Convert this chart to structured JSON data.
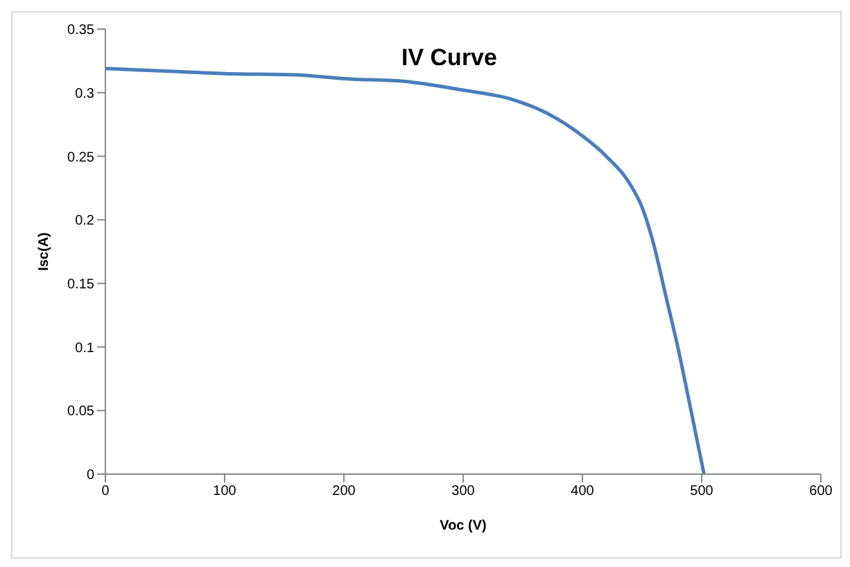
{
  "chart_data": {
    "type": "line",
    "title": "IV Curve",
    "xlabel": "Voc (V)",
    "ylabel": "Isc(A)",
    "series": [
      {
        "color": "#4a7ebb",
        "x": [
          0,
          50,
          100,
          160,
          200,
          250,
          300,
          340,
          370,
          400,
          420,
          440,
          450,
          460,
          470,
          480,
          490,
          502
        ],
        "values": [
          0.319,
          0.317,
          0.315,
          0.314,
          0.311,
          0.309,
          0.302,
          0.295,
          0.284,
          0.266,
          0.25,
          0.228,
          0.21,
          0.18,
          0.14,
          0.1,
          0.055,
          0
        ]
      }
    ],
    "xlim": [
      0,
      600
    ],
    "xticks": [
      0,
      100,
      200,
      300,
      400,
      500,
      600
    ],
    "ylim": [
      0,
      0.35
    ],
    "yticks": [
      0,
      0.05,
      0.1,
      0.15,
      0.2,
      0.25,
      0.3,
      0.35
    ],
    "grid": false,
    "marker": "none",
    "line_style": "solid"
  }
}
